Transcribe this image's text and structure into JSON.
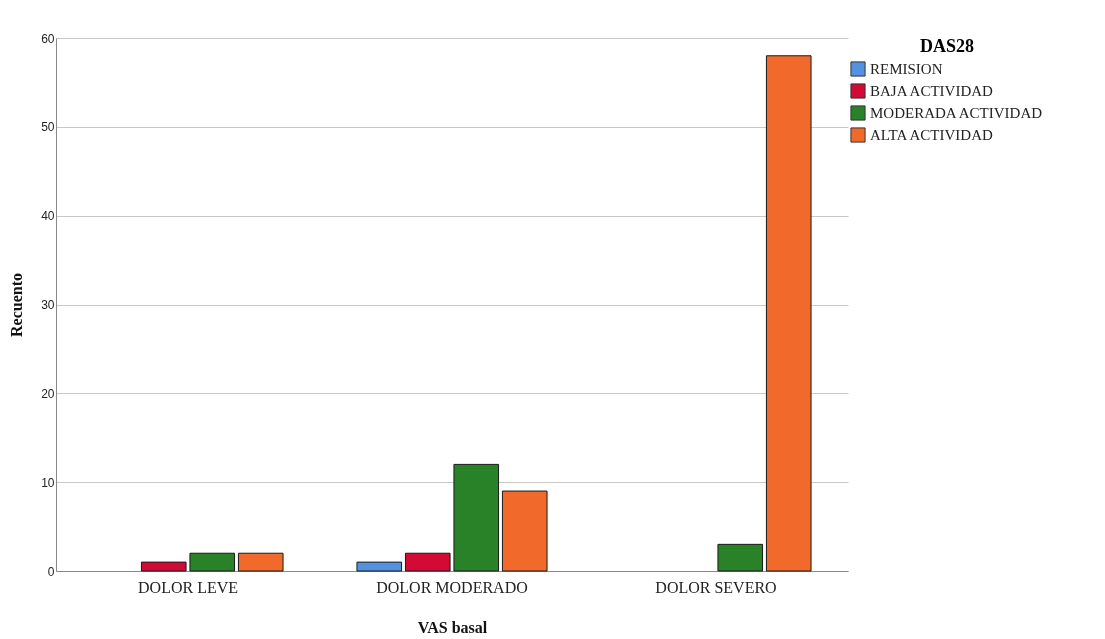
{
  "chart_data": {
    "type": "bar",
    "xlabel": "VAS basal",
    "ylabel": "Recuento",
    "legend_title": "DAS28",
    "categories": [
      "DOLOR LEVE",
      "DOLOR MODERADO",
      "DOLOR SEVERO"
    ],
    "series": [
      {
        "name": "REMISION",
        "color": "#5392e0",
        "values": [
          null,
          1,
          null
        ]
      },
      {
        "name": "BAJA ACTIVIDAD",
        "color": "#d20a35",
        "values": [
          1,
          2,
          null
        ]
      },
      {
        "name": "MODERADA ACTIVIDAD",
        "color": "#2a8228",
        "values": [
          2,
          12,
          3
        ]
      },
      {
        "name": "ALTA ACTIVIDAD",
        "color": "#f26a2b",
        "values": [
          2,
          9,
          58
        ]
      }
    ],
    "ylim": [
      0,
      60
    ],
    "yticks": [
      0,
      10,
      20,
      30,
      40,
      50,
      60
    ],
    "grid": "y",
    "legend": "top right"
  }
}
